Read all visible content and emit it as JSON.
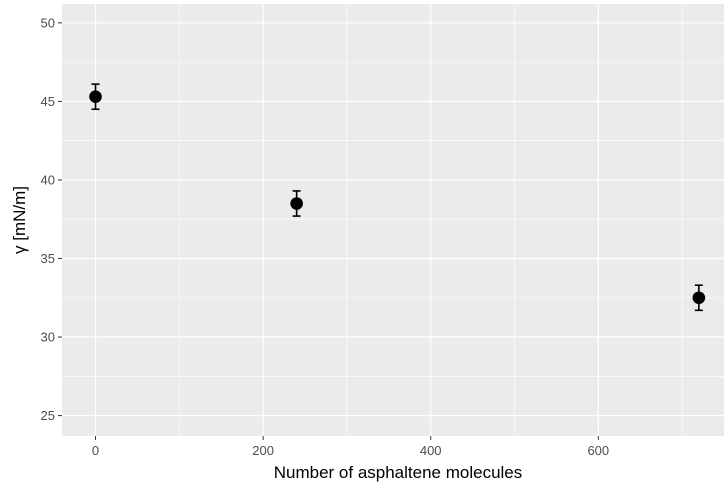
{
  "chart_data": {
    "type": "scatter",
    "title": "",
    "xlabel": "Number of asphaltene molecules",
    "ylabel": "γ [mN/m]",
    "xlim": [
      -40,
      750
    ],
    "ylim": [
      23.7,
      51.2
    ],
    "x_ticks": [
      0,
      200,
      400,
      600
    ],
    "x_tick_labels": [
      "0",
      "200",
      "400",
      "600"
    ],
    "y_ticks": [
      25,
      30,
      35,
      40,
      45,
      50
    ],
    "y_tick_labels": [
      "25",
      "30",
      "35",
      "40",
      "45",
      "50"
    ],
    "grid": true,
    "points": [
      {
        "x": 0,
        "y": 45.3,
        "err_low": 44.5,
        "err_high": 46.1
      },
      {
        "x": 240,
        "y": 38.5,
        "err_low": 37.7,
        "err_high": 39.3
      },
      {
        "x": 720,
        "y": 32.5,
        "err_low": 31.7,
        "err_high": 33.3
      }
    ],
    "colors": {
      "panel_background": "#ebebeb",
      "grid": "#ffffff",
      "point": "#000000",
      "tick_text": "#4d4d4d"
    }
  }
}
